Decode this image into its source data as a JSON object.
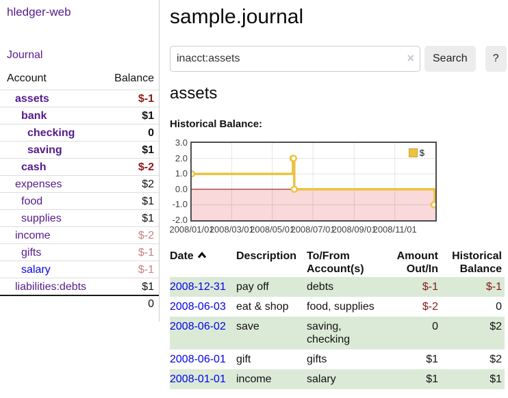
{
  "app": {
    "title": "hledger-web"
  },
  "sidebar": {
    "journal_link": "Journal",
    "table": {
      "header_account": "Account",
      "header_balance": "Balance",
      "rows": [
        {
          "name": "assets",
          "depth": 1,
          "bold": true,
          "balance": "$-1",
          "negative": "strong"
        },
        {
          "name": "bank",
          "depth": 2,
          "bold": true,
          "balance": "$1",
          "negative": ""
        },
        {
          "name": "checking",
          "depth": 3,
          "bold": true,
          "balance": "0",
          "negative": ""
        },
        {
          "name": "saving",
          "depth": 3,
          "bold": true,
          "balance": "$1",
          "negative": ""
        },
        {
          "name": "cash",
          "depth": 2,
          "bold": true,
          "balance": "$-2",
          "negative": "strong"
        },
        {
          "name": "expenses",
          "depth": 1,
          "bold": false,
          "balance": "$2",
          "negative": ""
        },
        {
          "name": "food",
          "depth": 2,
          "bold": false,
          "balance": "$1",
          "negative": ""
        },
        {
          "name": "supplies",
          "depth": 2,
          "bold": false,
          "balance": "$1",
          "negative": ""
        },
        {
          "name": "income",
          "depth": 1,
          "bold": false,
          "balance": "$-2",
          "negative": "dim"
        },
        {
          "name": "gifts",
          "depth": 2,
          "bold": false,
          "balance": "$-1",
          "negative": "dim"
        },
        {
          "name": "salary",
          "depth": 2,
          "bold": false,
          "balance": "$-1",
          "negative": "dim",
          "link_color": "blue"
        },
        {
          "name": "liabilities:debts",
          "depth": 1,
          "bold": false,
          "balance": "$1",
          "negative": ""
        }
      ],
      "total": "0"
    }
  },
  "main": {
    "title": "sample.journal",
    "search": {
      "value": "inacct:assets",
      "clear_icon": "×",
      "button_label": "Search",
      "help_label": "?"
    },
    "section_title": "assets",
    "chart_label": "Historical Balance:"
  },
  "chart_data": {
    "type": "line",
    "step": true,
    "title": "Historical Balance:",
    "ylim": [
      -2,
      3
    ],
    "y_ticks": [
      "3.0",
      "2.0",
      "1.0",
      "0.0",
      "-1.0",
      "-2.0"
    ],
    "x_range_days": [
      0,
      366
    ],
    "x_ticks": [
      {
        "day": 0,
        "label": "2008/01/01"
      },
      {
        "day": 60,
        "label": "2008/03/01"
      },
      {
        "day": 121,
        "label": "2008/05/01"
      },
      {
        "day": 182,
        "label": "2008/07/01"
      },
      {
        "day": 244,
        "label": "2008/09/01"
      },
      {
        "day": 305,
        "label": "2008/11/01"
      }
    ],
    "series": [
      {
        "name": "$",
        "color": "#edc240",
        "points": [
          {
            "date": "2008-01-01",
            "day": 0,
            "value": 1
          },
          {
            "date": "2008-06-01",
            "day": 152,
            "value": 2
          },
          {
            "date": "2008-06-02",
            "day": 153,
            "value": 2
          },
          {
            "date": "2008-06-03",
            "day": 154,
            "value": 0
          },
          {
            "date": "2008-12-31",
            "day": 365,
            "value": -1
          }
        ]
      }
    ],
    "legend": {
      "label": "$",
      "swatch_color": "#edc240",
      "position": "top-right"
    },
    "negative_region_color": "#f9d9d9",
    "zero_line_color": "#8b0000",
    "grid": true
  },
  "register": {
    "headers": [
      "Date",
      "Description",
      "To/From Account(s)",
      "Amount Out/In",
      "Historical Balance"
    ],
    "sort": {
      "column": "Date",
      "direction": "ascending",
      "icon": "chevron-up"
    },
    "rows": [
      {
        "date": "2008-12-31",
        "description": "pay off",
        "accounts": "debts",
        "amount": "$-1",
        "amount_negative": true,
        "balance": "$-1",
        "balance_negative": true
      },
      {
        "date": "2008-06-03",
        "description": "eat & shop",
        "accounts": "food, supplies",
        "amount": "$-2",
        "amount_negative": true,
        "balance": "0",
        "balance_negative": false
      },
      {
        "date": "2008-06-02",
        "description": "save",
        "accounts": "saving, checking",
        "amount": "0",
        "amount_negative": false,
        "balance": "$2",
        "balance_negative": false
      },
      {
        "date": "2008-06-01",
        "description": "gift",
        "accounts": "gifts",
        "amount": "$1",
        "amount_negative": false,
        "balance": "$2",
        "balance_negative": false
      },
      {
        "date": "2008-01-01",
        "description": "income",
        "accounts": "salary",
        "amount": "$1",
        "amount_negative": false,
        "balance": "$1",
        "balance_negative": false
      }
    ]
  }
}
